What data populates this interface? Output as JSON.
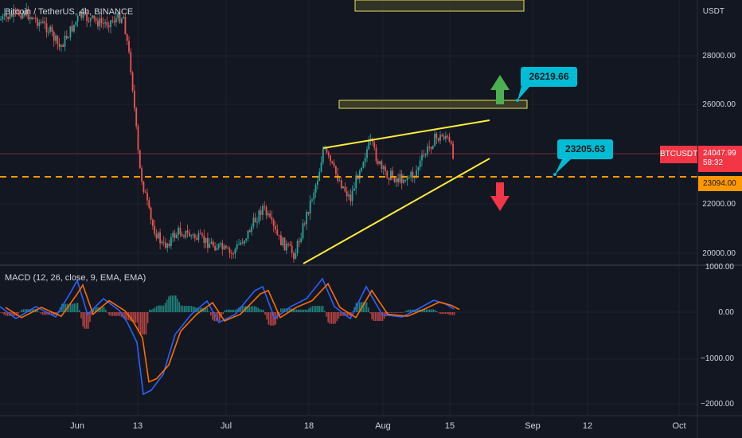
{
  "header": {
    "symbol_line": "Bitcoin / TetherUS, 4h, BINANCE",
    "currency": "USDT"
  },
  "price_axis": {
    "ticks": [
      "28000.00",
      "26000.00",
      "22000.00",
      "20000.00"
    ]
  },
  "macd": {
    "label": "MACD (12, 26, close, 9, EMA, EMA)",
    "ticks": [
      "1000.00",
      "0.00",
      "−1000.00",
      "−2000.00"
    ]
  },
  "time_axis": {
    "labels": [
      "Jun",
      "13",
      "Jul",
      "18",
      "Aug",
      "15",
      "Sep",
      "12",
      "Oct"
    ]
  },
  "tags": {
    "ticker": "BTCUSDT",
    "last_price": "24047.99",
    "countdown": "58:32",
    "support_level": "23094.00"
  },
  "callouts": {
    "target_up": "26219.66",
    "target_mid": "23205.63"
  },
  "colors": {
    "background": "#131722",
    "up": "#26a69a",
    "down": "#ef5350",
    "macd_line": "#2962ff",
    "signal_line": "#ff6d00",
    "wedge": "#ffeb3b",
    "support": "#ff9800",
    "callout": "#00bcd4",
    "arrow_up": "#4caf50",
    "arrow_down": "#f23645"
  }
}
